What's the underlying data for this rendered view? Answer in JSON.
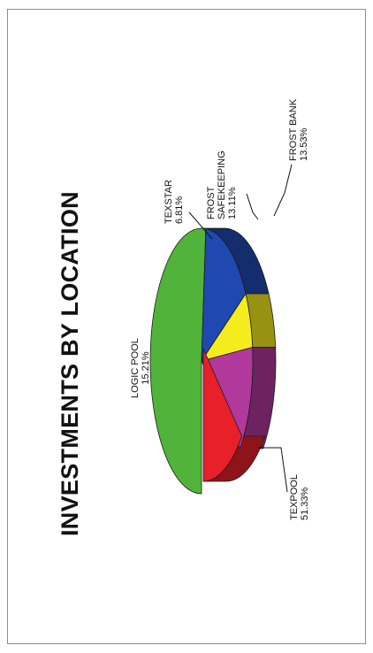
{
  "chart_data": {
    "type": "pie",
    "title": "INVESTMENTS BY LOCATION",
    "slices": [
      {
        "label": "TEXPOOL",
        "value_label": "51.33%",
        "value": 51.33,
        "color": "#52b33a"
      },
      {
        "label": "LOGIC POOL",
        "value_label": "15.21%",
        "value": 15.21,
        "color": "#1f49b0"
      },
      {
        "label": "TEXSTAR",
        "value_label": "6.81%",
        "value": 6.81,
        "color": "#f4ec1c"
      },
      {
        "label": "FROST SAFEKEEPING",
        "label_lines": [
          "FROST",
          "SAFEKEEPING"
        ],
        "value_label": "13.11%",
        "value": 13.11,
        "color": "#b0399b"
      },
      {
        "label": "FROST BANK",
        "value_label": "13.53%",
        "value": 13.53,
        "color": "#e7202a"
      }
    ],
    "legend": "none",
    "grid": false,
    "style": "3d-exploded"
  }
}
